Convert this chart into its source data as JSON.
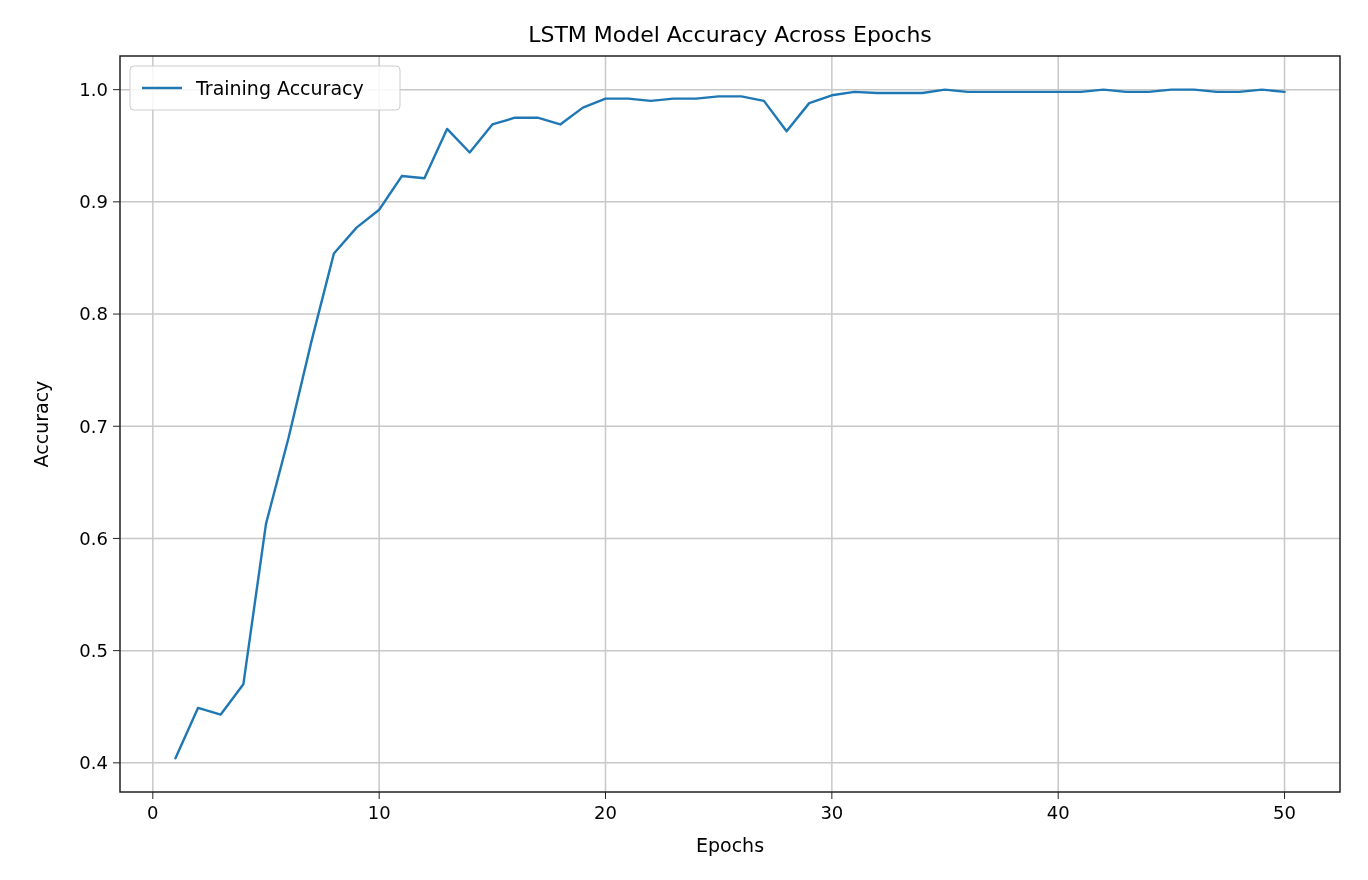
{
  "chart_data": {
    "type": "line",
    "title": "LSTM Model Accuracy Across Epochs",
    "xlabel": "Epochs",
    "ylabel": "Accuracy",
    "x": [
      1,
      2,
      3,
      4,
      5,
      6,
      7,
      8,
      9,
      10,
      11,
      12,
      13,
      14,
      15,
      16,
      17,
      18,
      19,
      20,
      21,
      22,
      23,
      24,
      25,
      26,
      27,
      28,
      29,
      30,
      31,
      32,
      33,
      34,
      35,
      36,
      37,
      38,
      39,
      40,
      41,
      42,
      43,
      44,
      45,
      46,
      47,
      48,
      49,
      50
    ],
    "series": [
      {
        "name": "Training Accuracy",
        "color": "#1f77b4",
        "values": [
          0.404,
          0.449,
          0.443,
          0.47,
          0.613,
          0.69,
          0.775,
          0.854,
          0.877,
          0.893,
          0.923,
          0.921,
          0.965,
          0.944,
          0.969,
          0.975,
          0.975,
          0.969,
          0.984,
          0.992,
          0.992,
          0.99,
          0.992,
          0.992,
          0.994,
          0.994,
          0.99,
          0.963,
          0.988,
          0.995,
          0.998,
          0.997,
          0.997,
          0.997,
          1.0,
          0.998,
          0.998,
          0.998,
          0.998,
          0.998,
          0.998,
          1.0,
          0.998,
          0.998,
          1.0,
          1.0,
          0.998,
          0.998,
          1.0,
          0.998
        ]
      }
    ],
    "xlim": [
      -1.45,
      52.45
    ],
    "ylim": [
      0.374,
      1.03
    ],
    "xticks": [
      0,
      10,
      20,
      30,
      40,
      50
    ],
    "yticks": [
      {
        "value": 0.4,
        "label": "0.4"
      },
      {
        "value": 0.5,
        "label": "0.5"
      },
      {
        "value": 0.6,
        "label": "0.6"
      },
      {
        "value": 0.7,
        "label": "0.7"
      },
      {
        "value": 0.8,
        "label": "0.8"
      },
      {
        "value": 0.9,
        "label": "0.9"
      },
      {
        "value": 1.0,
        "label": "1.0"
      }
    ],
    "grid": true,
    "legend": "top left",
    "marker": "none",
    "line_style": "solid"
  }
}
